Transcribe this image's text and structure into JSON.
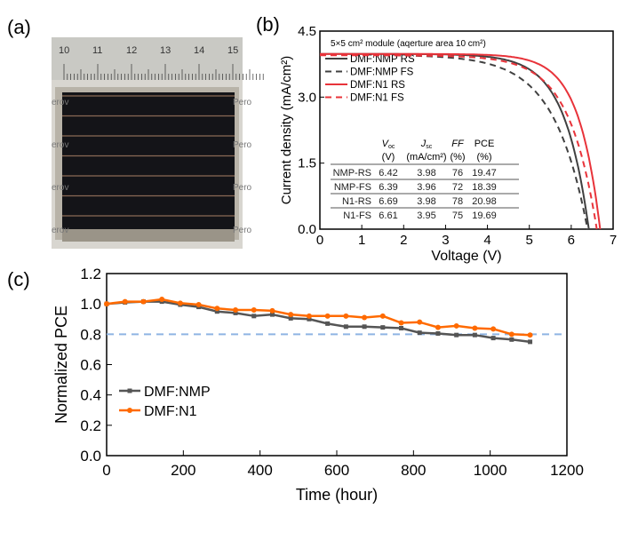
{
  "panel_labels": [
    "(a)",
    "(b)",
    "(c)"
  ],
  "photo": {
    "ruler_ticks": [
      "10",
      "11",
      "12",
      "13",
      "14",
      "15"
    ],
    "side_text_left": "erov",
    "side_text_right": "Pero",
    "colors": {
      "ruler": "#c9c9c4",
      "cell": "#141418",
      "frame": "#b8b3a8",
      "stripe": "#8a6a55"
    }
  },
  "chart_data": [
    {
      "type": "line",
      "panel": "(b)",
      "title": "5×5 cm² module (aqerture area 10 cm²)",
      "xlabel": "Voltage (V)",
      "ylabel": "Current density (mA/cm²)",
      "xlim": [
        0,
        7
      ],
      "ylim": [
        0,
        4.5
      ],
      "xticks": [
        "0",
        "1",
        "2",
        "3",
        "4",
        "5",
        "6",
        "7"
      ],
      "yticks": [
        "0.0",
        "1.5",
        "3.0",
        "4.5"
      ],
      "legend_placement": "top-left",
      "series": [
        {
          "name": "DMF:NMP RS",
          "color": "#404040",
          "dash": false,
          "voc": 6.42,
          "jsc": 3.98,
          "ff": 76
        },
        {
          "name": "DMF:NMP FS",
          "color": "#404040",
          "dash": true,
          "voc": 6.39,
          "jsc": 3.96,
          "ff": 72
        },
        {
          "name": "DMF:N1    RS",
          "color": "#e8333a",
          "dash": false,
          "voc": 6.69,
          "jsc": 3.98,
          "ff": 78
        },
        {
          "name": "DMF:N1    FS",
          "color": "#e8333a",
          "dash": true,
          "voc": 6.61,
          "jsc": 3.95,
          "ff": 75
        }
      ],
      "table": {
        "headers": [
          [
            "",
            ""
          ],
          [
            "V",
            "oc",
            "(V)"
          ],
          [
            "J",
            "sc",
            "(mA/cm²)"
          ],
          [
            "FF",
            "",
            "(%)"
          ],
          [
            "PCE",
            "",
            "(%)"
          ]
        ],
        "rows": [
          [
            "NMP-RS",
            "6.42",
            "3.98",
            "76",
            "19.47"
          ],
          [
            "NMP-FS",
            "6.39",
            "3.96",
            "72",
            "18.39"
          ],
          [
            "N1-RS",
            "6.69",
            "3.98",
            "78",
            "20.98"
          ],
          [
            "N1-FS",
            "6.61",
            "3.95",
            "75",
            "19.69"
          ]
        ]
      }
    },
    {
      "type": "line",
      "panel": "(c)",
      "xlabel": "Time (hour)",
      "ylabel": "Normalized PCE",
      "xlim": [
        0,
        1200
      ],
      "ylim": [
        0,
        1.2
      ],
      "xticks": [
        "0",
        "200",
        "400",
        "600",
        "800",
        "1000",
        "1200"
      ],
      "yticks": [
        "0.0",
        "0.2",
        "0.4",
        "0.6",
        "0.8",
        "1.0",
        "1.2"
      ],
      "reference_line": {
        "y": 0.8,
        "color": "#8fb4e3"
      },
      "legend_placement": "bottom-left",
      "x": [
        0,
        48,
        96,
        144,
        192,
        240,
        288,
        336,
        384,
        432,
        480,
        528,
        576,
        624,
        672,
        720,
        768,
        816,
        864,
        912,
        960,
        1008,
        1056,
        1104
      ],
      "series": [
        {
          "name": "DMF:NMP",
          "color": "#555555",
          "marker": "square",
          "values": [
            1.0,
            1.01,
            1.015,
            1.015,
            0.995,
            0.98,
            0.95,
            0.94,
            0.92,
            0.93,
            0.905,
            0.9,
            0.87,
            0.85,
            0.85,
            0.845,
            0.84,
            0.81,
            0.805,
            0.795,
            0.795,
            0.775,
            0.765,
            0.75
          ]
        },
        {
          "name": "DMF:N1",
          "color": "#ff6a00",
          "marker": "circle",
          "values": [
            1.0,
            1.015,
            1.015,
            1.03,
            1.005,
            0.995,
            0.97,
            0.96,
            0.96,
            0.955,
            0.93,
            0.92,
            0.92,
            0.92,
            0.91,
            0.92,
            0.875,
            0.88,
            0.845,
            0.855,
            0.84,
            0.835,
            0.8,
            0.795
          ]
        }
      ]
    }
  ]
}
